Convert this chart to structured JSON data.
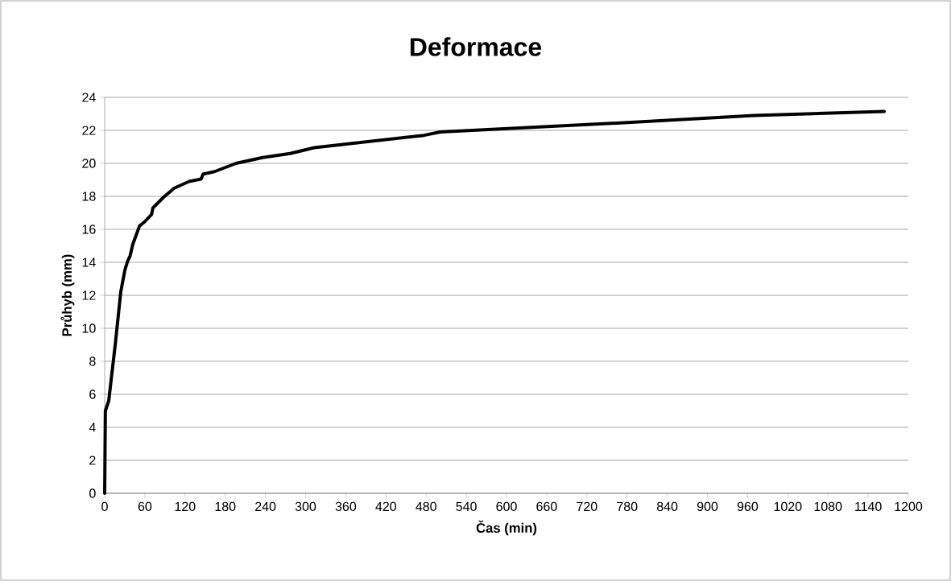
{
  "chart_data": {
    "type": "line",
    "title": "Deformace",
    "xlabel": "Čas (min)",
    "ylabel": "Průhyb (mm)",
    "xlim": [
      0,
      1200
    ],
    "xticks": [
      0,
      60,
      120,
      180,
      240,
      300,
      360,
      420,
      480,
      540,
      600,
      660,
      720,
      780,
      840,
      900,
      960,
      1020,
      1080,
      1140,
      1200
    ],
    "ylim": [
      0,
      24
    ],
    "yticks": [
      0,
      2,
      4,
      6,
      8,
      10,
      12,
      14,
      16,
      18,
      20,
      22,
      24
    ],
    "grid": "y",
    "legend": false,
    "marker": "none",
    "line_style": "solid",
    "series": [
      {
        "color": "#000000",
        "x": [
          0,
          1,
          6,
          16,
          24,
          30,
          34,
          38,
          42,
          52,
          58,
          70,
          72,
          88,
          104,
          126,
          144,
          147,
          164,
          196,
          236,
          277,
          313,
          477,
          501,
          770,
          970,
          1164
        ],
        "values": [
          0,
          5.0,
          5.6,
          9.1,
          12.2,
          13.5,
          14.05,
          14.4,
          15.1,
          16.2,
          16.4,
          16.9,
          17.3,
          17.95,
          18.5,
          18.9,
          19.05,
          19.35,
          19.5,
          20.0,
          20.35,
          20.6,
          20.95,
          21.7,
          21.9,
          22.45,
          22.9,
          23.15
        ]
      }
    ]
  }
}
